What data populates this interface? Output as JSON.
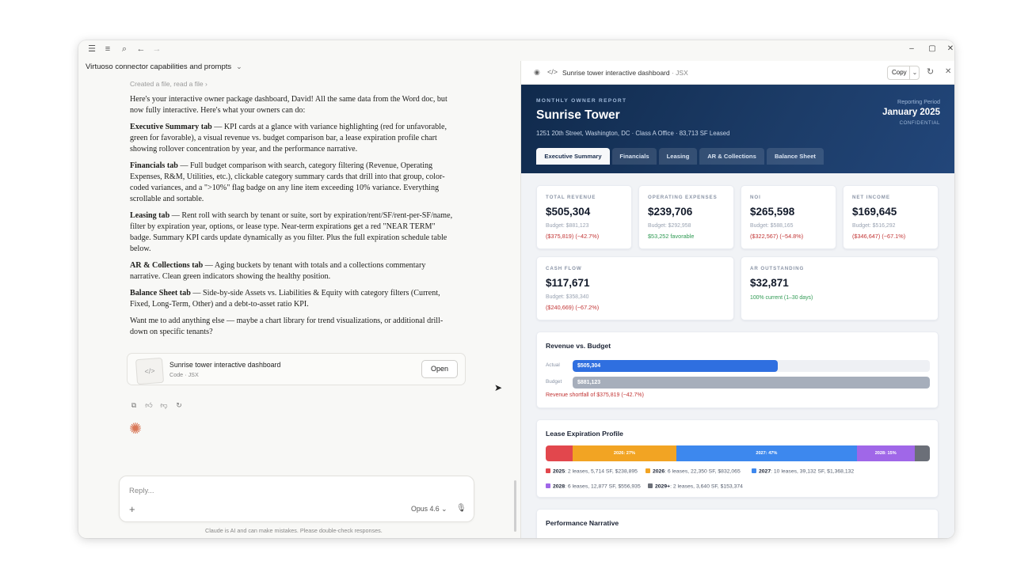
{
  "window": {
    "conversation_title": "Virtuoso connector capabilities and prompts",
    "controls": {
      "minimize": "–",
      "maximize": "▢",
      "close": "✕"
    }
  },
  "chat": {
    "created_note": "Created a file, read a file ›",
    "intro": "Here's your interactive owner package dashboard, David! All the same data from the Word doc, but now fully interactive. Here's what your owners can do:",
    "sections": [
      {
        "title": "Executive Summary tab",
        "text": " — KPI cards at a glance with variance highlighting (red for unfavorable, green for favorable), a visual revenue vs. budget comparison bar, a lease expiration profile chart showing rollover concentration by year, and the performance narrative."
      },
      {
        "title": "Financials tab",
        "text": " — Full budget comparison with search, category filtering (Revenue, Operating Expenses, R&M, Utilities, etc.), clickable category summary cards that drill into that group, color-coded variances, and a \">10%\" flag badge on any line item exceeding 10% variance. Everything scrollable and sortable."
      },
      {
        "title": "Leasing tab",
        "text": " — Rent roll with search by tenant or suite, sort by expiration/rent/SF/rent-per-SF/name, filter by expiration year, options, or lease type. Near-term expirations get a red \"NEAR TERM\" badge. Summary KPI cards update dynamically as you filter. Plus the full expiration schedule table below."
      },
      {
        "title": "AR & Collections tab",
        "text": " — Aging buckets by tenant with totals and a collections commentary narrative. Clean green indicators showing the healthy position."
      },
      {
        "title": "Balance Sheet tab",
        "text": " — Side-by-side Assets vs. Liabilities & Equity with category filters (Current, Fixed, Long-Term, Other) and a debt-to-asset ratio KPI."
      }
    ],
    "closing": "Want me to add anything else — maybe a chart library for trend visualizations, or additional drill-down on specific tenants?",
    "artifact": {
      "name": "Sunrise tower interactive dashboard",
      "sub": "Code · JSX",
      "open_label": "Open"
    },
    "reply_placeholder": "Reply...",
    "model": "Opus 4.6",
    "disclaimer": "Claude is AI and can make mistakes. Please double-check responses."
  },
  "artifact_panel": {
    "title": "Sunrise tower interactive dashboard",
    "title_suffix": " · JSX",
    "copy_label": "Copy"
  },
  "dashboard": {
    "kicker": "MONTHLY OWNER REPORT",
    "title": "Sunrise Tower",
    "subtitle": "1251 20th Street, Washington, DC  ·  Class A Office  ·  83,713 SF Leased",
    "period_label": "Reporting Period",
    "period": "January 2025",
    "confidential": "CONFIDENTIAL",
    "tabs": [
      "Executive Summary",
      "Financials",
      "Leasing",
      "AR & Collections",
      "Balance Sheet"
    ],
    "active_tab": 0,
    "kpis": [
      {
        "label": "TOTAL REVENUE",
        "value": "$505,304",
        "budget": "Budget: $881,123",
        "variance": "($375,819) (−42.7%)",
        "tone": "negative"
      },
      {
        "label": "OPERATING EXPENSES",
        "value": "$239,706",
        "budget": "Budget: $292,958",
        "variance": "$53,252 favorable",
        "tone": "positive"
      },
      {
        "label": "NOI",
        "value": "$265,598",
        "budget": "Budget: $588,165",
        "variance": "($322,567) (−54.8%)",
        "tone": "negative"
      },
      {
        "label": "NET INCOME",
        "value": "$169,645",
        "budget": "Budget: $516,292",
        "variance": "($346,647) (−67.1%)",
        "tone": "negative"
      },
      {
        "label": "CASH FLOW",
        "value": "$117,671",
        "budget": "Budget: $358,340",
        "variance": "($240,669) (−67.2%)",
        "tone": "negative"
      },
      {
        "label": "AR OUTSTANDING",
        "value": "$32,871",
        "budget": "",
        "variance": "100% current (1–30 days)",
        "tone": "positive"
      }
    ],
    "revenue_vs_budget": {
      "title": "Revenue vs. Budget",
      "actual_label": "Actual",
      "budget_label": "Budget",
      "actual_value": "$505,304",
      "budget_value": "$881,123",
      "actual": 505304,
      "budget": 881123,
      "note": "Revenue shortfall of $375,819 (−42.7%)",
      "colors": {
        "actual": "#2f6fe0",
        "budget": "#a6aebb"
      }
    },
    "lease_expiration": {
      "title": "Lease Expiration Profile",
      "segments": [
        {
          "year": "2025",
          "share": 7,
          "label": "",
          "color": "#e2474d"
        },
        {
          "year": "2026",
          "share": 27,
          "label": "2026: 27%",
          "color": "#f2a423"
        },
        {
          "year": "2027",
          "share": 47,
          "label": "2027: 47%",
          "color": "#3d88ee"
        },
        {
          "year": "2028",
          "share": 15,
          "label": "2028: 15%",
          "color": "#a067e8"
        },
        {
          "year": "2029+",
          "share": 4,
          "label": "",
          "color": "#6b6f78"
        }
      ],
      "legend": [
        {
          "year": "2025",
          "text": ": 2 leases, 5,714 SF, $238,895"
        },
        {
          "year": "2026",
          "text": ": 6 leases, 22,350 SF, $832,065"
        },
        {
          "year": "2027",
          "text": ": 10 leases, 39,132 SF, $1,368,132"
        },
        {
          "year": "2028",
          "text": ": 6 leases, 12,877 SF, $556,935"
        },
        {
          "year": "2029+",
          "text": ": 2 leases, 3,640 SF, $153,374"
        }
      ]
    },
    "narrative_title": "Performance Narrative"
  }
}
